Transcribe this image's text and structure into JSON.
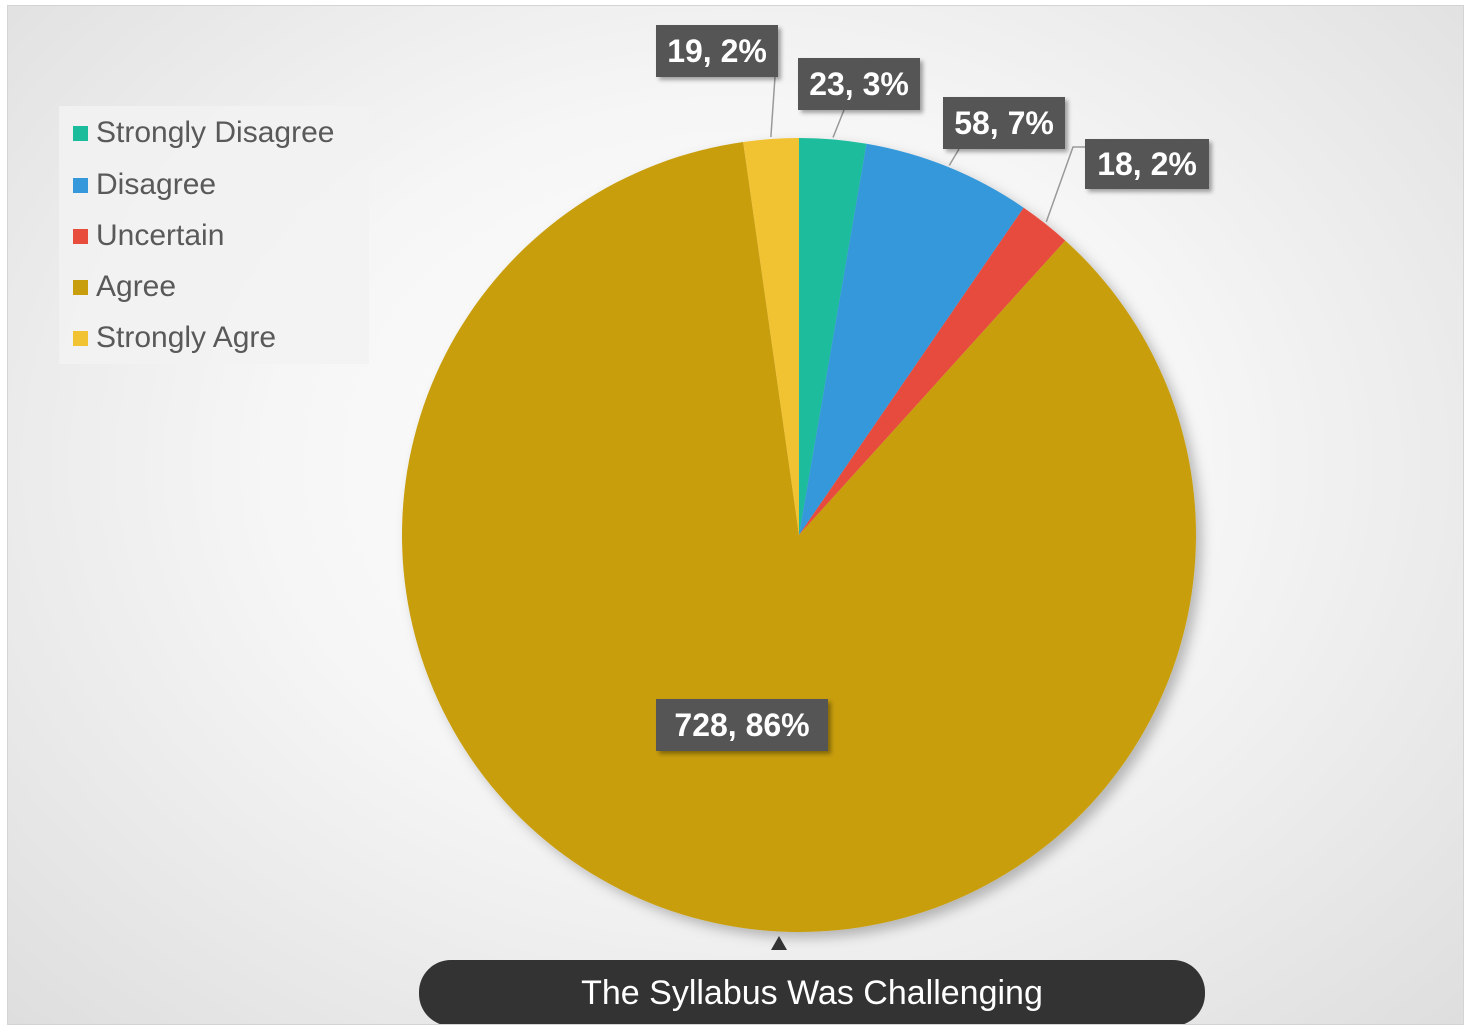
{
  "chart_data": {
    "type": "pie",
    "title": "The Syllabus Was Challenging",
    "legend_position": "top-left",
    "categories": [
      "Strongly Disagree",
      "Disagree",
      "Uncertain",
      "Agree",
      "Strongly Agre"
    ],
    "values": [
      23,
      58,
      18,
      728,
      19
    ],
    "percents": [
      3,
      7,
      2,
      86,
      2
    ],
    "data_labels": [
      "23, 3%",
      "58, 7%",
      "18, 2%",
      "728, 86%",
      "19, 2%"
    ],
    "colors": [
      "#1abc9c",
      "#3498db",
      "#e74c3c",
      "#c89e0d",
      "#f1c232"
    ],
    "start_angle_deg": 0,
    "direction": "clockwise"
  },
  "legend": {
    "items": [
      {
        "label": "Strongly Disagree",
        "color": "#1abc9c"
      },
      {
        "label": "Disagree",
        "color": "#3498db"
      },
      {
        "label": "Uncertain",
        "color": "#e74c3c"
      },
      {
        "label": "Agree",
        "color": "#c89e0d"
      },
      {
        "label": "Strongly Agre",
        "color": "#f1c232"
      }
    ]
  },
  "theme": {
    "label_box_color": "#555555",
    "title_box_color": "#333333",
    "leader_line_color": "#999999"
  }
}
